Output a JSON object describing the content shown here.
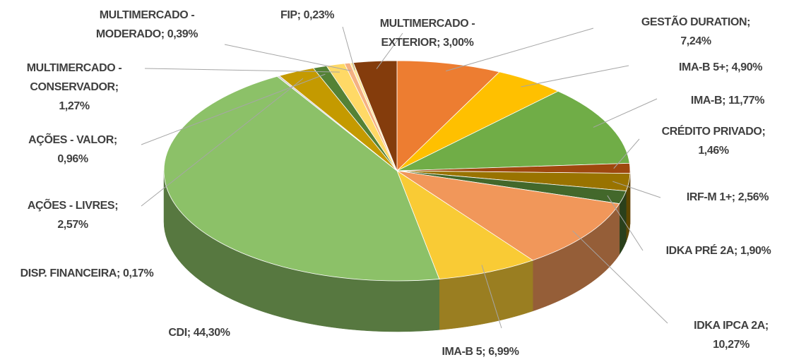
{
  "chart_data": {
    "type": "pie",
    "categories": [
      "GESTÃO DURATION",
      "IMA-B 5+",
      "IMA-B",
      "CRÉDITO PRIVADO",
      "IRF-M 1+",
      "IDKA PRÉ 2A",
      "IDKA IPCA 2A",
      "IMA-B 5",
      "CDI",
      "DISP. FINANCEIRA",
      "AÇÕES - LIVRES",
      "AÇÕES - VALOR",
      "MULTIMERCADO - CONSERVADOR",
      "MULTIMERCADO - MODERADO",
      "FIP",
      "MULTIMERCADO - EXTERIOR"
    ],
    "values": [
      7.24,
      4.9,
      11.77,
      1.46,
      2.56,
      1.9,
      10.27,
      6.99,
      44.3,
      0.17,
      2.57,
      0.96,
      1.27,
      0.39,
      0.23,
      3.0
    ],
    "value_labels": [
      "7,24%",
      "4,90%",
      "11,77%",
      "1,46%",
      "2,56%",
      "1,90%",
      "10,27%",
      "6,99%",
      "44,30%",
      "0,17%",
      "2,57%",
      "0,96%",
      "1,27%",
      "0,39%",
      "0,23%",
      "3,00%"
    ],
    "label_separator": ";",
    "colors": [
      "#ed7d31",
      "#ffc000",
      "#70ad47",
      "#9e480e",
      "#997300",
      "#43682b",
      "#f1975a",
      "#f9cb35",
      "#8cc168",
      "#d0cece",
      "#c49a00",
      "#548235",
      "#ffd966",
      "#f4b183",
      "#ffe699",
      "#843c0c"
    ]
  }
}
